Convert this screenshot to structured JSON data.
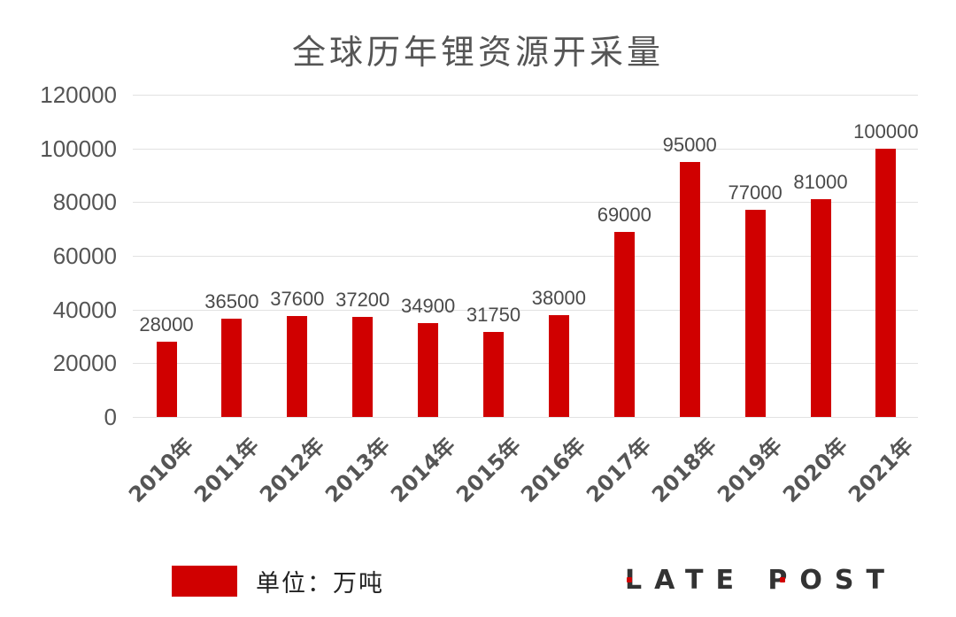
{
  "title": "全球历年锂资源开采量",
  "legend": {
    "label": "单位：万吨",
    "color": "#d00000"
  },
  "brand": "LATE POST",
  "y_ticks": [
    "0",
    "20000",
    "40000",
    "60000",
    "80000",
    "100000",
    "120000"
  ],
  "x_ticks": [
    "2010年",
    "2011年",
    "2012年",
    "2013年",
    "2014年",
    "2015年",
    "2016年",
    "2017年",
    "2018年",
    "2019年",
    "2020年",
    "2021年"
  ],
  "value_labels": [
    "28000",
    "36500",
    "37600",
    "37200",
    "34900",
    "31750",
    "38000",
    "69000",
    "95000",
    "77000",
    "81000",
    "100000"
  ],
  "chart_data": {
    "type": "bar",
    "title": "全球历年锂资源开采量",
    "xlabel": "",
    "ylabel": "",
    "categories": [
      "2010年",
      "2011年",
      "2012年",
      "2013年",
      "2014年",
      "2015年",
      "2016年",
      "2017年",
      "2018年",
      "2019年",
      "2020年",
      "2021年"
    ],
    "series": [
      {
        "name": "单位：万吨",
        "color": "#d00000",
        "values": [
          28000,
          36500,
          37600,
          37200,
          34900,
          31750,
          38000,
          69000,
          95000,
          77000,
          81000,
          100000
        ]
      }
    ],
    "ylim": [
      0,
      120000
    ],
    "yticks": [
      0,
      20000,
      40000,
      60000,
      80000,
      100000,
      120000
    ],
    "grid": true,
    "data_labels": true,
    "legend_position": "bottom-left",
    "x_tick_rotation": -45
  }
}
